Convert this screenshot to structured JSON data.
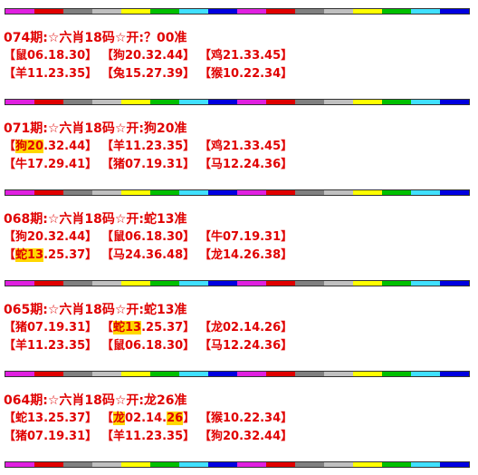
{
  "blocks": [
    {
      "title": "074期:☆六肖18码☆开:？00准",
      "rows": [
        [
          [
            {
              "text": "【鼠06.18.30】"
            }
          ],
          [
            {
              "text": "【狗20.32.44】"
            }
          ],
          [
            {
              "text": "【鸡21.33.45】"
            }
          ]
        ],
        [
          [
            {
              "text": "【羊11.23.35】"
            }
          ],
          [
            {
              "text": "【兔15.27.39】"
            }
          ],
          [
            {
              "text": "【猴10.22.34】"
            }
          ]
        ]
      ]
    },
    {
      "title": "071期:☆六肖18码☆开:狗20准",
      "rows": [
        [
          [
            {
              "text": "【"
            },
            {
              "text": "狗20",
              "highlight": true
            },
            {
              "text": ".32.44】"
            }
          ],
          [
            {
              "text": "【羊11.23.35】"
            }
          ],
          [
            {
              "text": "【鸡21.33.45】"
            }
          ]
        ],
        [
          [
            {
              "text": "【牛17.29.41】"
            }
          ],
          [
            {
              "text": "【猪07.19.31】"
            }
          ],
          [
            {
              "text": "【马12.24.36】"
            }
          ]
        ]
      ]
    },
    {
      "title": "068期:☆六肖18码☆开:蛇13准",
      "rows": [
        [
          [
            {
              "text": "【狗20.32.44】"
            }
          ],
          [
            {
              "text": "【鼠06.18.30】"
            }
          ],
          [
            {
              "text": "【牛07.19.31】"
            }
          ]
        ],
        [
          [
            {
              "text": "【"
            },
            {
              "text": "蛇13",
              "highlight": true
            },
            {
              "text": ".25.37】"
            }
          ],
          [
            {
              "text": "【马24.36.48】"
            }
          ],
          [
            {
              "text": "【龙14.26.38】"
            }
          ]
        ]
      ]
    },
    {
      "title": "065期:☆六肖18码☆开:蛇13准",
      "rows": [
        [
          [
            {
              "text": "【猪07.19.31】"
            }
          ],
          [
            {
              "text": "【"
            },
            {
              "text": "蛇13",
              "highlight": true
            },
            {
              "text": ".25.37】"
            }
          ],
          [
            {
              "text": "【龙02.14.26】"
            }
          ]
        ],
        [
          [
            {
              "text": "【羊11.23.35】"
            }
          ],
          [
            {
              "text": "【鼠06.18.30】"
            }
          ],
          [
            {
              "text": "【马12.24.36】"
            }
          ]
        ]
      ]
    },
    {
      "title": "064期:☆六肖18码☆开:龙26准",
      "rows": [
        [
          [
            {
              "text": "【蛇13.25.37】"
            }
          ],
          [
            {
              "text": "【"
            },
            {
              "text": "龙",
              "highlight": true
            },
            {
              "text": "02.14."
            },
            {
              "text": "26",
              "highlight": true
            },
            {
              "text": "】"
            }
          ],
          [
            {
              "text": "【猴10.22.34】"
            }
          ]
        ],
        [
          [
            {
              "text": "【猪07.19.31】"
            }
          ],
          [
            {
              "text": "【羊11.23.35】"
            }
          ],
          [
            {
              "text": "【狗20.32.44】"
            }
          ]
        ]
      ]
    }
  ]
}
